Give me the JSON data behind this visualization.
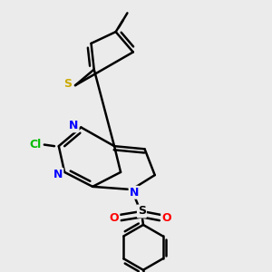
{
  "background_color": "#ebebeb",
  "bond_color": "#000000",
  "bond_width": 1.8,
  "atom_colors": {
    "N": "#0000ff",
    "S_thio": "#ccaa00",
    "Cl": "#00bb00",
    "O": "#ff0000",
    "C": "#000000"
  },
  "figsize": [
    3.0,
    3.0
  ],
  "dpi": 100
}
